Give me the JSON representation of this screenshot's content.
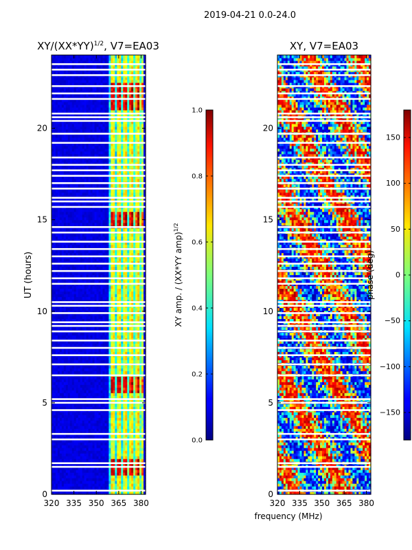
{
  "suptitle": "2019-04-21 0.0-24.0",
  "chart_data": [
    {
      "type": "heatmap",
      "title": "XY/(XX*YY)",
      "title_exponent": "1/2",
      "title_suffix": ", V7=EA03",
      "ylabel": "UT (hours)",
      "xlabel": "",
      "x_ticks": [
        "320",
        "335",
        "350",
        "365",
        "380"
      ],
      "x_tick_values": [
        320,
        335,
        350,
        365,
        380
      ],
      "y_ticks": [
        "0",
        "5",
        "10",
        "15",
        "20"
      ],
      "y_tick_values": [
        0,
        5,
        10,
        15,
        20
      ],
      "xlim": [
        320,
        383
      ],
      "ylim": [
        0,
        24
      ],
      "colorbar": {
        "label": "XY amp. / (XX*YY amp)",
        "label_exponent": "1/2",
        "ticks": [
          "0.0",
          "0.2",
          "0.4",
          "0.6",
          "0.8",
          "1.0"
        ],
        "tick_values": [
          0.0,
          0.2,
          0.4,
          0.6,
          0.8,
          1.0
        ],
        "range": [
          0.0,
          1.0
        ]
      },
      "active_band_mhz": [
        359,
        381
      ],
      "high_amplitude_hours": [
        [
          5.5,
          6.5
        ],
        [
          14.5,
          15.5
        ],
        [
          21.0,
          22.5
        ],
        [
          1.0,
          2.0
        ]
      ]
    },
    {
      "type": "heatmap",
      "title": "XY, V7=EA03",
      "xlabel": "frequency (MHz)",
      "ylabel": "",
      "x_ticks": [
        "320",
        "335",
        "350",
        "365",
        "380"
      ],
      "x_tick_values": [
        320,
        335,
        350,
        365,
        380
      ],
      "y_ticks": [
        "0",
        "5",
        "10",
        "15",
        "20"
      ],
      "y_tick_values": [
        0,
        5,
        10,
        15,
        20
      ],
      "xlim": [
        320,
        383
      ],
      "ylim": [
        0,
        24
      ],
      "colorbar": {
        "label": "phase (deg)",
        "ticks": [
          "−150",
          "−100",
          "−50",
          "0",
          "50",
          "100",
          "150"
        ],
        "tick_values": [
          -150,
          -100,
          -50,
          0,
          50,
          100,
          150
        ],
        "range": [
          -180,
          180
        ]
      }
    }
  ],
  "flagged_hours": [
    0.2,
    1.5,
    1.7,
    3.0,
    3.3,
    4.6,
    5.0,
    5.2,
    6.5,
    7.1,
    7.6,
    8.0,
    8.4,
    8.9,
    9.2,
    9.4,
    9.9,
    10.3,
    10.5,
    11.5,
    11.8,
    12.2,
    12.6,
    13.0,
    13.4,
    13.8,
    14.3,
    14.6,
    15.7,
    16.0,
    16.2,
    16.7,
    17.0,
    17.4,
    17.7,
    18.0,
    18.4,
    19.2,
    19.7,
    20.4,
    20.6,
    20.8,
    21.6,
    21.9,
    22.3,
    22.9,
    23.2,
    23.5
  ]
}
